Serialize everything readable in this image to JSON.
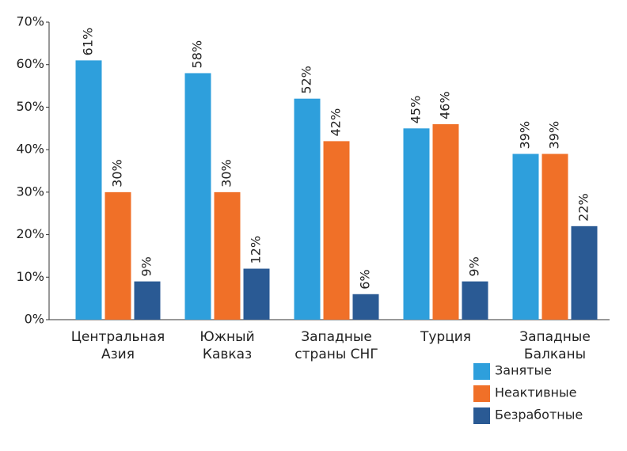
{
  "chart_data": {
    "type": "bar",
    "categories": [
      [
        "Центральная",
        "Азия"
      ],
      [
        "Южный",
        "Кавказ"
      ],
      [
        "Западные",
        "страны СНГ"
      ],
      [
        "Турция"
      ],
      [
        "Западные",
        "Балканы"
      ]
    ],
    "series": [
      {
        "name": "Занятые",
        "color": "#2e9fdc",
        "values": [
          61,
          58,
          52,
          45,
          39
        ],
        "value_labels": [
          "61%",
          "58%",
          "52%",
          "45%",
          "39%"
        ]
      },
      {
        "name": "Неактивные",
        "color": "#f07028",
        "values": [
          30,
          30,
          42,
          46,
          39
        ],
        "value_labels": [
          "30%",
          "30%",
          "42%",
          "46%",
          "39%"
        ]
      },
      {
        "name": "Безработные",
        "color": "#2a5a94",
        "values": [
          9,
          12,
          6,
          9,
          22
        ],
        "value_labels": [
          "9%",
          "12%",
          "6%",
          "9%",
          "22%"
        ]
      }
    ],
    "ylim": [
      0,
      70
    ],
    "yticks": [
      {
        "value": 0,
        "label": "0%"
      },
      {
        "value": 10,
        "label": "10%"
      },
      {
        "value": 20,
        "label": "20%"
      },
      {
        "value": 30,
        "label": "30%"
      },
      {
        "value": 40,
        "label": "40%"
      },
      {
        "value": 50,
        "label": "50%"
      },
      {
        "value": 60,
        "label": "60%"
      },
      {
        "value": 70,
        "label": "70%"
      }
    ],
    "legend": "bottom-right"
  }
}
